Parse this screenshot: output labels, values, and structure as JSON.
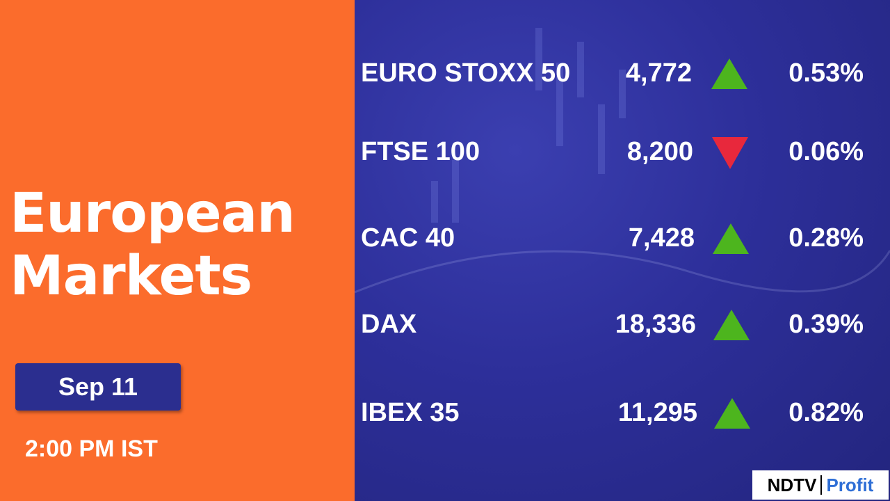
{
  "header": {
    "title_line1": "European",
    "title_line2": "Markets",
    "date": "Sep 11",
    "time": "2:00 PM IST"
  },
  "table": {
    "rows": [
      {
        "name": "EURO STOXX 50",
        "value": "4,772",
        "direction": "up",
        "change": "0.53%"
      },
      {
        "name": "FTSE 100",
        "value": "8,200",
        "direction": "down",
        "change": "0.06%"
      },
      {
        "name": "CAC 40",
        "value": "7,428",
        "direction": "up",
        "change": "0.28%"
      },
      {
        "name": "DAX",
        "value": "18,336",
        "direction": "up",
        "change": "0.39%"
      },
      {
        "name": "IBEX 35",
        "value": "11,295",
        "direction": "up",
        "change": "0.82%"
      }
    ]
  },
  "logo": {
    "brand": "NDTV",
    "product": "Profit"
  }
}
